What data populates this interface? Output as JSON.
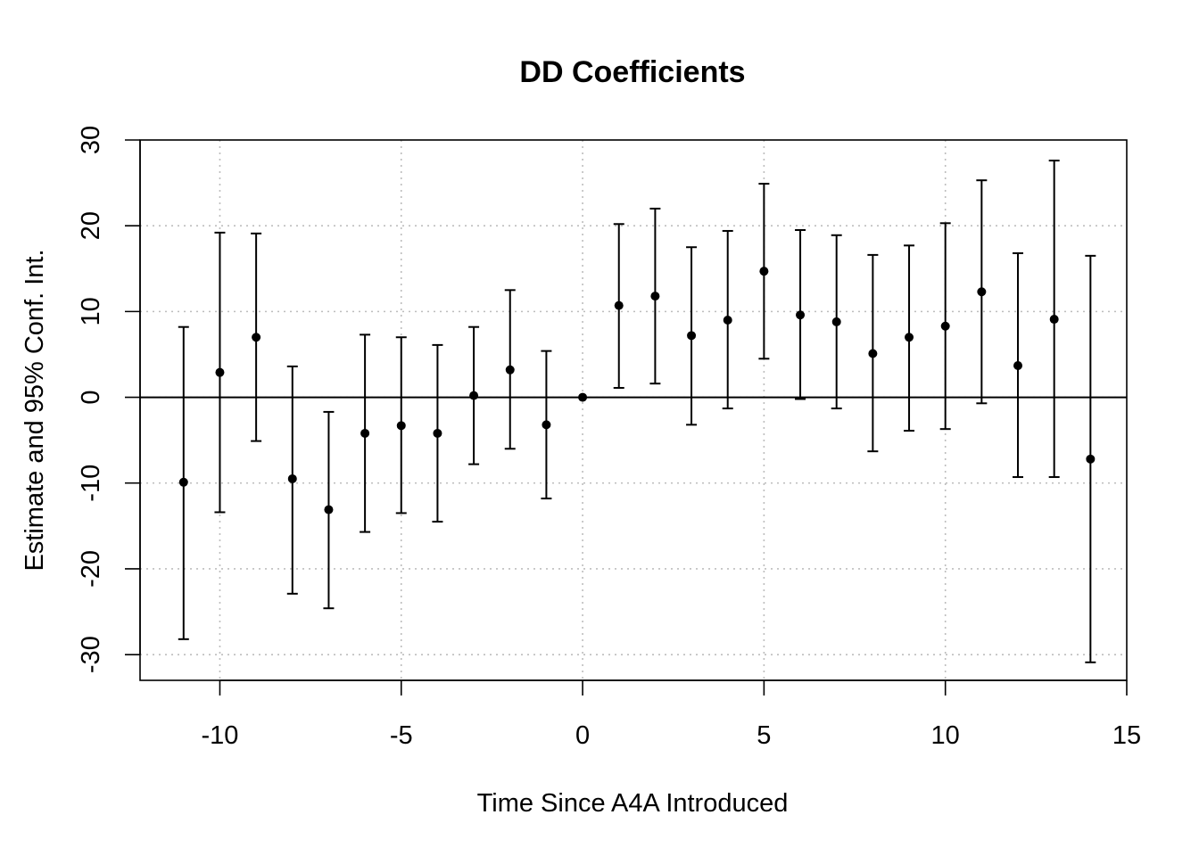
{
  "chart_data": {
    "type": "scatter",
    "title": "DD Coefficients",
    "xlabel": "Time Since A4A Introduced",
    "ylabel": "Estimate and 95% Conf. Int.",
    "xlim": [
      -12.2,
      15
    ],
    "ylim": [
      -33,
      30
    ],
    "x_ticks": [
      -10,
      -5,
      0,
      5,
      10,
      15
    ],
    "y_ticks": [
      -30,
      -20,
      -10,
      0,
      10,
      20,
      30
    ],
    "x_tick_labels": [
      "-10",
      "-5",
      "0",
      "5",
      "10",
      "15"
    ],
    "y_tick_labels": [
      "-30",
      "-20",
      "-10",
      "0",
      "10",
      "20",
      "30"
    ],
    "grid": true,
    "reference_line_y": 0,
    "series": [
      {
        "x": [
          -11,
          -10,
          -9,
          -8,
          -7,
          -6,
          -5,
          -4,
          -3,
          -2,
          -1,
          0,
          1,
          2,
          3,
          4,
          5,
          6,
          7,
          8,
          9,
          10,
          11,
          12,
          13,
          14
        ],
        "y": [
          -9.9,
          2.9,
          7.0,
          -9.5,
          -13.1,
          -4.2,
          -3.3,
          -4.2,
          0.2,
          3.2,
          -3.2,
          0.0,
          10.7,
          11.8,
          7.2,
          9.0,
          14.7,
          9.6,
          8.8,
          5.1,
          7.0,
          8.3,
          12.3,
          3.7,
          9.1,
          -7.2
        ],
        "lower": [
          -28.2,
          -13.4,
          -5.1,
          -22.9,
          -24.6,
          -15.7,
          -13.5,
          -14.5,
          -7.8,
          -6.0,
          -11.8,
          0.0,
          1.1,
          1.6,
          -3.2,
          -1.3,
          4.5,
          -0.2,
          -1.3,
          -6.3,
          -3.9,
          -3.7,
          -0.7,
          -9.3,
          -9.3,
          -30.9
        ],
        "upper": [
          8.2,
          19.2,
          19.1,
          3.6,
          -1.7,
          7.3,
          7.0,
          6.1,
          8.2,
          12.5,
          5.4,
          0.0,
          20.2,
          22.0,
          17.5,
          19.4,
          24.9,
          19.5,
          18.9,
          16.6,
          17.7,
          20.3,
          25.3,
          16.8,
          27.6,
          16.5
        ]
      }
    ]
  }
}
